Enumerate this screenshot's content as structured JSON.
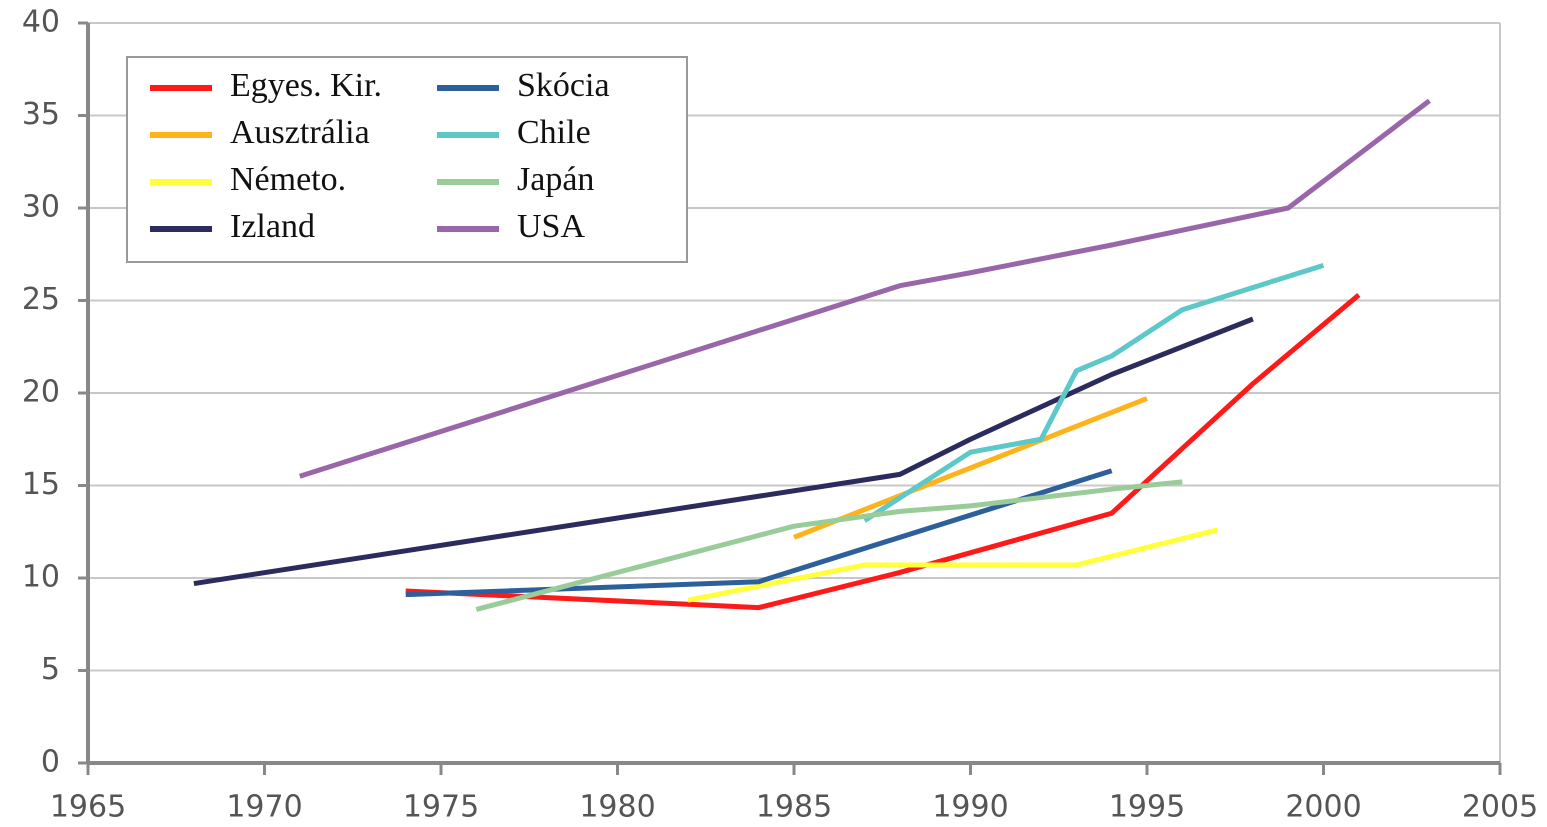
{
  "chart_data": {
    "type": "line",
    "series": [
      {
        "name": "Egyes. Kir.",
        "color": "#ff1a1a",
        "x": [
          1974,
          1984,
          1988,
          1994,
          1998,
          2001
        ],
        "values": [
          9.3,
          8.4,
          10.3,
          13.5,
          20.5,
          25.3
        ]
      },
      {
        "name": "Ausztrália",
        "color": "#ffb31a",
        "x": [
          1985,
          1995
        ],
        "values": [
          12.2,
          19.7
        ]
      },
      {
        "name": "Németo.",
        "color": "#ffff3a",
        "x": [
          1982,
          1987,
          1993,
          1997
        ],
        "values": [
          8.8,
          10.7,
          10.7,
          12.6
        ]
      },
      {
        "name": "Izland",
        "color": "#2b2b5e",
        "x": [
          1968,
          1988,
          1990,
          1994,
          1998
        ],
        "values": [
          9.7,
          15.6,
          17.5,
          21,
          24
        ]
      },
      {
        "name": "Skócia",
        "color": "#2d5f9b",
        "x": [
          1974,
          1984,
          1994
        ],
        "values": [
          9.1,
          9.8,
          15.8
        ]
      },
      {
        "name": "Chile",
        "color": "#5cc8c8",
        "x": [
          1987,
          1990,
          1992,
          1993,
          1994,
          1996,
          2000
        ],
        "values": [
          13.1,
          16.8,
          17.5,
          21.2,
          22,
          24.5,
          26.9
        ]
      },
      {
        "name": "Japán",
        "color": "#99cc99",
        "x": [
          1976,
          1985,
          1988,
          1990,
          1994,
          1996
        ],
        "values": [
          8.3,
          12.8,
          13.6,
          13.9,
          14.8,
          15.2
        ]
      },
      {
        "name": "USA",
        "color": "#9966aa",
        "x": [
          1971,
          1988,
          1990,
          1994,
          1999,
          2003
        ],
        "values": [
          15.5,
          25.8,
          26.5,
          28,
          30,
          35.8
        ]
      }
    ],
    "xlim": [
      1965,
      2005
    ],
    "xticks": [
      1965,
      1970,
      1975,
      1980,
      1985,
      1990,
      1995,
      2000,
      2005
    ],
    "ylim": [
      0,
      40
    ],
    "yticks": [
      0,
      5,
      10,
      15,
      20,
      25,
      30,
      35,
      40
    ],
    "grid": true,
    "legend": "upper left"
  }
}
